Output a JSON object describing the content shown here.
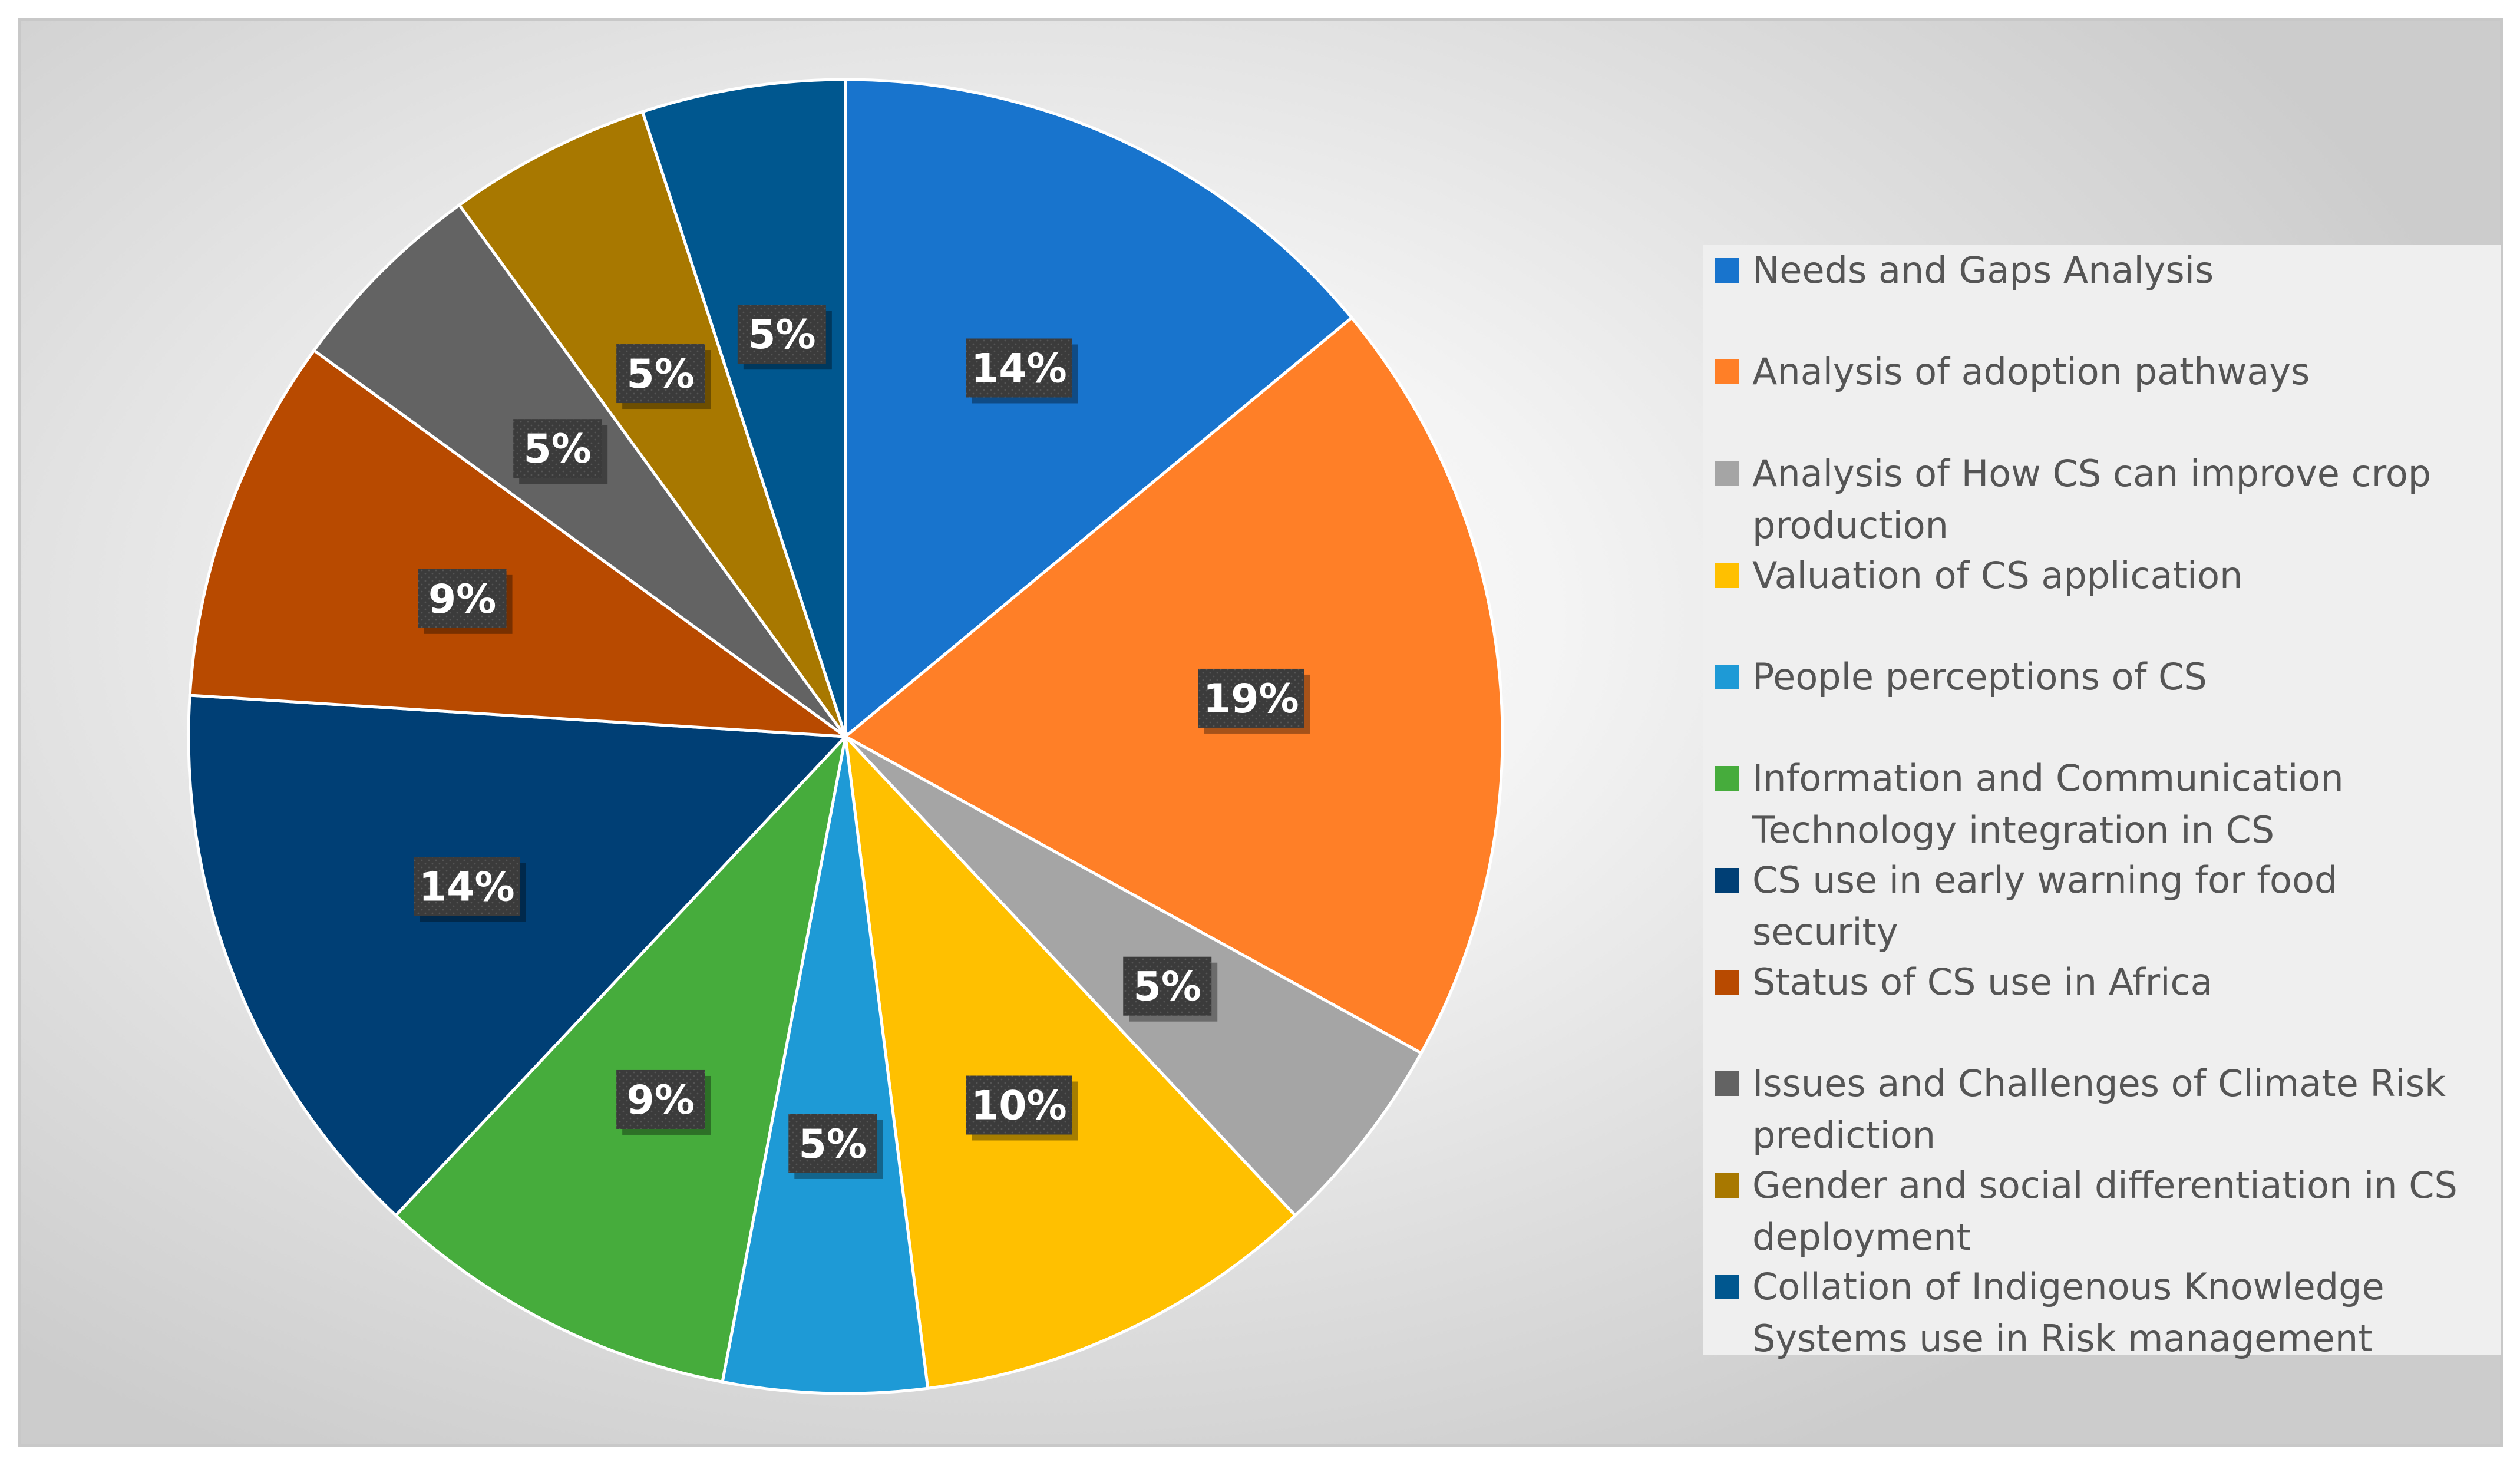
{
  "chart_data": {
    "type": "pie",
    "title": "",
    "slices": [
      {
        "name": "Needs and Gaps Analysis",
        "value": 14,
        "label": "14%",
        "color": "#1874CD"
      },
      {
        "name": "Analysis of adoption pathways",
        "value": 19,
        "label": "19%",
        "color": "#FF7F27"
      },
      {
        "name": "Analysis of How CS can improve crop production",
        "value": 5,
        "label": "5%",
        "color": "#A5A5A5"
      },
      {
        "name": "Valuation of CS application",
        "value": 10,
        "label": "10%",
        "color": "#FFC000"
      },
      {
        "name": "People perceptions of CS",
        "value": 5,
        "label": "5%",
        "color": "#1E9AD6"
      },
      {
        "name": "Information and Communication Technology integration in CS",
        "value": 9,
        "label": "9%",
        "color": "#46AC3C"
      },
      {
        "name": "CS use in early warning for food security",
        "value": 14,
        "label": "14%",
        "color": "#003F75"
      },
      {
        "name": "Status of CS use in Africa",
        "value": 9,
        "label": "9%",
        "color": "#B84A00"
      },
      {
        "name": "Issues and Challenges of Climate Risk prediction",
        "value": 5,
        "label": "5%",
        "color": "#636363"
      },
      {
        "name": "Gender and social differentiation in CS deployment",
        "value": 5,
        "label": "5%",
        "color": "#A87800"
      },
      {
        "name": "Collation of Indigenous Knowledge Systems use in Risk management",
        "value": 5,
        "label": "5%",
        "color": "#00578F"
      }
    ],
    "legend_position": "right",
    "data_label_style": {
      "background": "#3a3a3a",
      "text_color": "#ffffff"
    }
  }
}
